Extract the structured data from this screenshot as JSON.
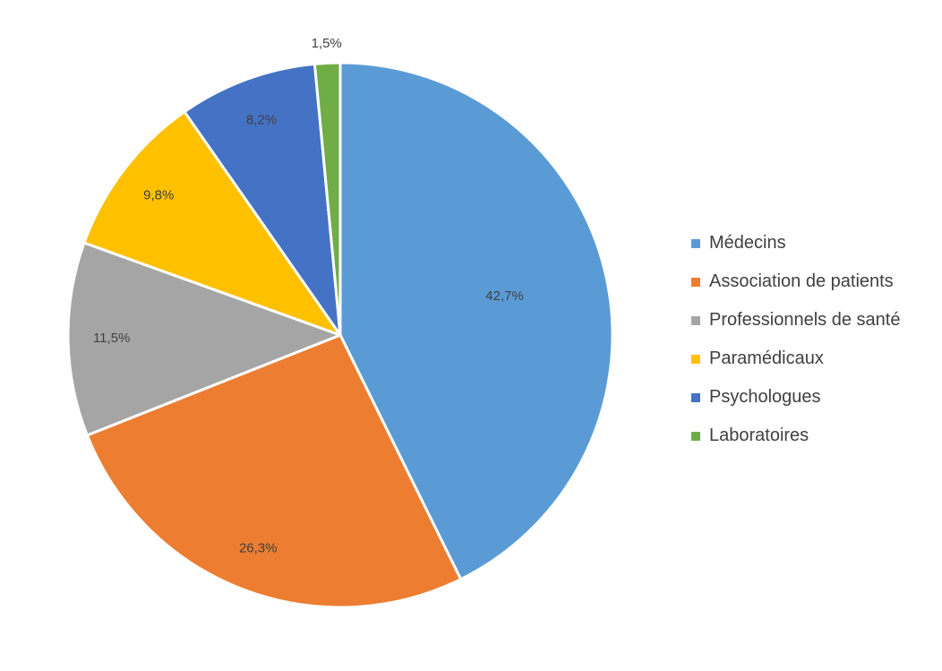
{
  "chart_data": {
    "type": "pie",
    "title": "",
    "categories": [
      "Médecins",
      "Association de patients",
      "Professionnels de santé",
      "Paramédicaux",
      "Psychologues",
      "Laboratoires"
    ],
    "values": [
      42.7,
      26.3,
      11.5,
      9.8,
      8.2,
      1.5
    ],
    "data_labels": [
      "42,7%",
      "26,3%",
      "11,5%",
      "9,8%",
      "8,2%",
      "1,5%"
    ],
    "colors": [
      "#5b9bd5",
      "#ed7d31",
      "#a5a5a5",
      "#ffc000",
      "#4472c4",
      "#70ad47"
    ],
    "start_angle": "12 o'clock",
    "direction": "clockwise",
    "legend_position": "right"
  },
  "legend": {
    "items": [
      {
        "label": "Médecins",
        "color": "#5b9bd5"
      },
      {
        "label": "Association de patients",
        "color": "#ed7d31"
      },
      {
        "label": "Professionnels de santé",
        "color": "#a5a5a5"
      },
      {
        "label": "Paramédicaux",
        "color": "#ffc000"
      },
      {
        "label": "Psychologues",
        "color": "#4472c4"
      },
      {
        "label": "Laboratoires",
        "color": "#70ad47"
      }
    ]
  }
}
